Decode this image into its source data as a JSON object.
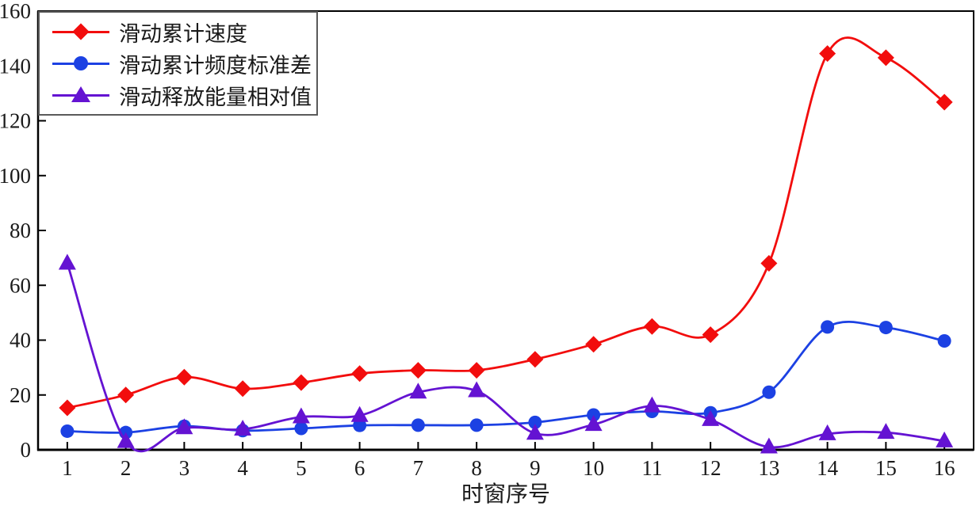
{
  "chart_data": {
    "type": "line",
    "title": "",
    "xlabel": "时窗序号",
    "ylabel": "",
    "x": [
      1,
      2,
      3,
      4,
      5,
      6,
      7,
      8,
      9,
      10,
      11,
      12,
      13,
      14,
      15,
      16
    ],
    "xlim": [
      0.5,
      16.5
    ],
    "ylim": [
      0,
      160
    ],
    "yticks": [
      0,
      20,
      40,
      60,
      80,
      100,
      120,
      140,
      160
    ],
    "grid": false,
    "smooth": true,
    "legend_position": "top-left",
    "frame_color": "#000000",
    "series": [
      {
        "name": "滑动累计速度",
        "marker": "diamond",
        "color": "#f20d0d",
        "values": [
          15.3,
          20,
          26.5,
          22.3,
          24.5,
          27.8,
          29,
          29,
          33,
          38.5,
          45,
          42,
          68,
          144.5,
          143,
          126.8
        ]
      },
      {
        "name": "滑动累计频度标准差",
        "marker": "circle",
        "color": "#1c41e3",
        "values": [
          6.8,
          6.3,
          8.6,
          7,
          7.8,
          8.9,
          9,
          9,
          10,
          12.7,
          14,
          13.5,
          21,
          44.8,
          44.6,
          39.7
        ]
      },
      {
        "name": "滑动释放能量相对值",
        "marker": "triangle",
        "color": "#6413d2",
        "values": [
          68,
          3,
          8,
          7.5,
          12,
          12.5,
          21,
          21.5,
          6,
          9.2,
          16,
          11,
          1,
          5.8,
          6.3,
          3.2
        ]
      }
    ]
  }
}
